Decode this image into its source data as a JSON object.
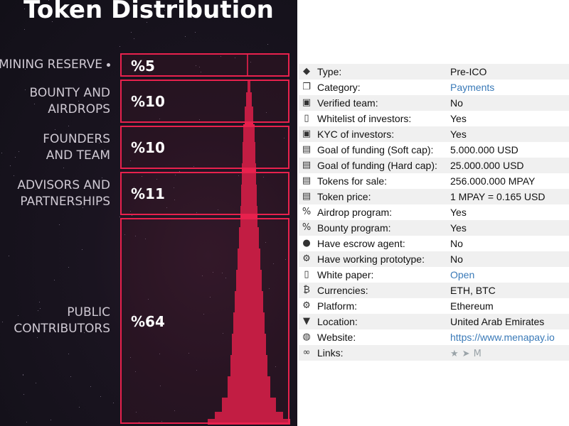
{
  "infographic": {
    "title": "Token Distribution",
    "segments": [
      {
        "label_lines": [
          "MINING RESERVE"
        ],
        "percent": "%5",
        "value": 5
      },
      {
        "label_lines": [
          "BOUNTY AND",
          "AIRDROPS"
        ],
        "percent": "%10",
        "value": 10
      },
      {
        "label_lines": [
          "FOUNDERS",
          "AND TEAM"
        ],
        "percent": "%10",
        "value": 10
      },
      {
        "label_lines": [
          "ADVISORS AND",
          "PARTNERSHIPS"
        ],
        "percent": "%11",
        "value": 11
      },
      {
        "label_lines": [
          "PUBLIC",
          "CONTRIBUTORS"
        ],
        "percent": "%64",
        "value": 64
      }
    ]
  },
  "details": [
    {
      "icon": "tag-icon",
      "glyph": "◆",
      "label": "Type:",
      "value": "Pre-ICO",
      "link": false
    },
    {
      "icon": "folder-open-icon",
      "glyph": "❐",
      "label": "Category:",
      "value": "Payments",
      "link": true
    },
    {
      "icon": "id-card-icon",
      "glyph": "▣",
      "label": "Verified team:",
      "value": "No",
      "link": false
    },
    {
      "icon": "document-icon",
      "glyph": "▯",
      "label": "Whitelist of investors:",
      "value": "Yes",
      "link": false
    },
    {
      "icon": "id-card-icon",
      "glyph": "▣",
      "label": "KYC of investors:",
      "value": "Yes",
      "link": false
    },
    {
      "icon": "money-icon",
      "glyph": "▤",
      "label": "Goal of funding (Soft cap):",
      "value": "5.000.000 USD",
      "link": false
    },
    {
      "icon": "money-icon",
      "glyph": "▤",
      "label": "Goal of funding (Hard cap):",
      "value": "25.000.000 USD",
      "link": false
    },
    {
      "icon": "money-icon",
      "glyph": "▤",
      "label": "Tokens for sale:",
      "value": "256.000.000 MPAY",
      "link": false
    },
    {
      "icon": "money-icon",
      "glyph": "▤",
      "label": "Token price:",
      "value": "1 MPAY = 0.165 USD",
      "link": false
    },
    {
      "icon": "percent-icon",
      "glyph": "%",
      "label": "Airdrop program:",
      "value": "Yes",
      "link": false
    },
    {
      "icon": "percent-icon",
      "glyph": "%",
      "label": "Bounty program:",
      "value": "Yes",
      "link": false
    },
    {
      "icon": "user-icon",
      "glyph": "●",
      "label": "Have escrow agent:",
      "value": "No",
      "link": false
    },
    {
      "icon": "gears-icon",
      "glyph": "⚙",
      "label": "Have working prototype:",
      "value": "No",
      "link": false
    },
    {
      "icon": "document-icon",
      "glyph": "▯",
      "label": "White paper:",
      "value": "Open",
      "link": true
    },
    {
      "icon": "bitcoin-icon",
      "glyph": "₿",
      "label": "Currencies:",
      "value": "ETH, BTC",
      "link": false
    },
    {
      "icon": "gear-icon",
      "glyph": "⚙",
      "label": "Platform:",
      "value": "Ethereum",
      "link": false
    },
    {
      "icon": "map-marker-icon",
      "glyph": "▼",
      "label": "Location:",
      "value": "United Arab Emirates",
      "link": false
    },
    {
      "icon": "globe-icon",
      "glyph": "◍",
      "label": "Website:",
      "value": "https://www.menapay.io",
      "link": true
    },
    {
      "icon": "link-icon",
      "glyph": "∞",
      "label": "Links:",
      "value": "",
      "link": false
    }
  ],
  "social_links": [
    {
      "icon": "twitter-icon",
      "glyph": "★"
    },
    {
      "icon": "telegram-icon",
      "glyph": "➤"
    },
    {
      "icon": "medium-icon",
      "glyph": "M"
    }
  ],
  "colors": {
    "accent": "#e8214d",
    "link": "#3a7ab8",
    "background_dark": "#121018"
  }
}
